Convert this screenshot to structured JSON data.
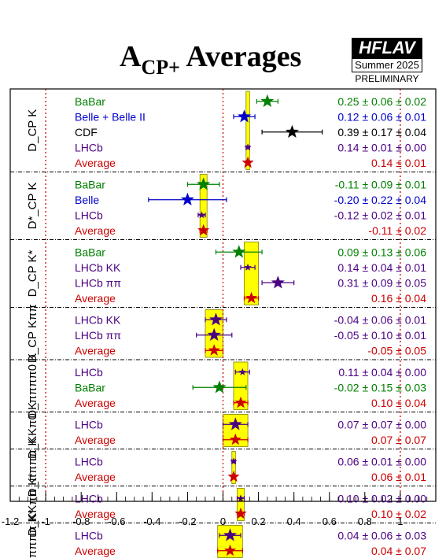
{
  "header": {
    "title_main": "A",
    "title_sub": "CP+",
    "title_rest": " Averages",
    "logo": "HFLAV",
    "season": "Summer 2025",
    "status": "PRELIMINARY"
  },
  "colors": {
    "BaBar": "#008000",
    "Belle": "#0000cc",
    "CDF": "#000000",
    "LHCb": "#4b0082",
    "Average": "#cc0000",
    "band": "#ffff00",
    "band_edge": "#808000"
  },
  "chart_data": {
    "type": "scatter",
    "title": "ACP+ Averages",
    "xlim": [
      -1.2,
      1.2
    ],
    "xticks": [
      "-1.2",
      "-1",
      "-0.8",
      "-0.6",
      "-0.4",
      "-0.2",
      "0",
      "0.2",
      "0.4",
      "0.6",
      "0.8",
      "1"
    ],
    "xtick_values": [
      -1.2,
      -1,
      -0.8,
      -0.6,
      -0.4,
      -0.2,
      0,
      0.2,
      0.4,
      0.6,
      0.8,
      1
    ],
    "reference_lines": [
      -1,
      0,
      1
    ],
    "groups": [
      {
        "label": "D_CP K",
        "average": 0.14,
        "average_error": 0.01,
        "rows": [
          {
            "name": "BaBar",
            "exp": "BaBar",
            "value": 0.25,
            "error": 0.06,
            "text": "0.25 ± 0.06 ± 0.02"
          },
          {
            "name": "Belle + Belle II",
            "exp": "Belle",
            "value": 0.12,
            "error": 0.06,
            "text": "0.12 ± 0.06 ± 0.01"
          },
          {
            "name": "CDF",
            "exp": "CDF",
            "value": 0.39,
            "error": 0.17,
            "text": "0.39 ± 0.17 ± 0.04"
          },
          {
            "name": "LHCb",
            "exp": "LHCb",
            "value": 0.14,
            "error": 0.01,
            "text": "0.14 ± 0.01 ± 0.00"
          },
          {
            "name": "Average",
            "exp": "Average",
            "value": 0.14,
            "error": 0.01,
            "text": "0.14 ± 0.01"
          }
        ]
      },
      {
        "label": "D*_CP K",
        "average": -0.11,
        "average_error": 0.02,
        "rows": [
          {
            "name": "BaBar",
            "exp": "BaBar",
            "value": -0.11,
            "error": 0.09,
            "text": "-0.11 ± 0.09 ± 0.01"
          },
          {
            "name": "Belle",
            "exp": "Belle",
            "value": -0.2,
            "error": 0.22,
            "text": "-0.20 ± 0.22 ± 0.04"
          },
          {
            "name": "LHCb",
            "exp": "LHCb",
            "value": -0.12,
            "error": 0.02,
            "text": "-0.12 ± 0.02 ± 0.01"
          },
          {
            "name": "Average",
            "exp": "Average",
            "value": -0.11,
            "error": 0.02,
            "text": "-0.11 ± 0.02"
          }
        ]
      },
      {
        "label": "D_CP K*",
        "average": 0.16,
        "average_error": 0.04,
        "rows": [
          {
            "name": "BaBar",
            "exp": "BaBar",
            "value": 0.09,
            "error": 0.13,
            "text": "0.09 ± 0.13 ± 0.06"
          },
          {
            "name": "LHCb KK",
            "exp": "LHCb",
            "value": 0.14,
            "error": 0.04,
            "text": "0.14 ± 0.04 ± 0.01"
          },
          {
            "name": "LHCb ππ",
            "exp": "LHCb",
            "value": 0.31,
            "error": 0.09,
            "text": "0.31 ± 0.09 ± 0.05"
          },
          {
            "name": "Average",
            "exp": "Average",
            "value": 0.16,
            "error": 0.04,
            "text": "0.16 ± 0.04"
          }
        ]
      },
      {
        "label": "D_CP Kππ",
        "average": -0.05,
        "average_error": 0.05,
        "rows": [
          {
            "name": "LHCb KK",
            "exp": "LHCb",
            "value": -0.04,
            "error": 0.06,
            "text": "-0.04 ± 0.06 ± 0.01"
          },
          {
            "name": "LHCb ππ",
            "exp": "LHCb",
            "value": -0.05,
            "error": 0.1,
            "text": "-0.05 ± 0.10 ± 0.01"
          },
          {
            "name": "Average",
            "exp": "Average",
            "value": -0.05,
            "error": 0.05,
            "text": "-0.05 ± 0.05"
          }
        ]
      },
      {
        "label": "D_ππππ0 K",
        "average": 0.1,
        "average_error": 0.04,
        "rows": [
          {
            "name": "LHCb",
            "exp": "LHCb",
            "value": 0.11,
            "error": 0.04,
            "text": "0.11 ± 0.04 ± 0.00"
          },
          {
            "name": "BaBar",
            "exp": "BaBar",
            "value": -0.02,
            "error": 0.15,
            "text": "-0.02 ± 0.15 ± 0.03"
          },
          {
            "name": "Average",
            "exp": "Average",
            "value": 0.1,
            "error": 0.04,
            "text": "0.10 ± 0.04"
          }
        ]
      },
      {
        "label": "D_KKπ0 K",
        "average": 0.07,
        "average_error": 0.07,
        "rows": [
          {
            "name": "LHCb",
            "exp": "LHCb",
            "value": 0.07,
            "error": 0.07,
            "text": "0.07 ± 0.07 ± 0.00"
          },
          {
            "name": "Average",
            "exp": "Average",
            "value": 0.07,
            "error": 0.07,
            "text": "0.07 ± 0.07"
          }
        ]
      },
      {
        "label": "D_ππππ K",
        "average": 0.06,
        "average_error": 0.01,
        "rows": [
          {
            "name": "LHCb",
            "exp": "LHCb",
            "value": 0.06,
            "error": 0.01,
            "text": "0.06 ± 0.01 ± 0.00"
          },
          {
            "name": "Average",
            "exp": "Average",
            "value": 0.06,
            "error": 0.01,
            "text": "0.06 ± 0.01"
          }
        ]
      },
      {
        "label": "D_KKππ K*",
        "average": 0.1,
        "average_error": 0.02,
        "rows": [
          {
            "name": "LHCb",
            "exp": "LHCb",
            "value": 0.1,
            "error": 0.02,
            "text": "0.10 ± 0.02 ± 0.00"
          },
          {
            "name": "Average",
            "exp": "Average",
            "value": 0.1,
            "error": 0.02,
            "text": "0.10 ± 0.02"
          }
        ]
      },
      {
        "label": "D_ππππ K*",
        "average": 0.04,
        "average_error": 0.07,
        "rows": [
          {
            "name": "LHCb",
            "exp": "LHCb",
            "value": 0.04,
            "error": 0.06,
            "text": "0.04 ± 0.06 ± 0.03"
          },
          {
            "name": "Average",
            "exp": "Average",
            "value": 0.04,
            "error": 0.07,
            "text": "0.04 ± 0.07"
          }
        ]
      }
    ]
  }
}
